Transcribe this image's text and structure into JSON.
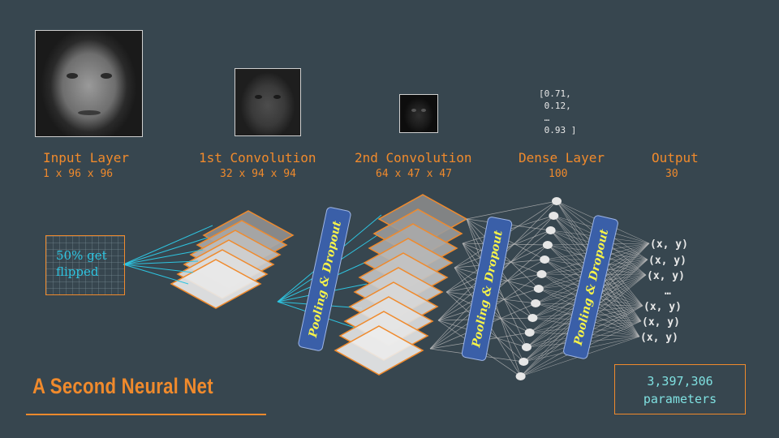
{
  "layers": [
    {
      "name": "Input Layer",
      "dims": "1 x 96 x 96"
    },
    {
      "name": "1st Convolution",
      "dims": "32 x 94 x 94"
    },
    {
      "name": "2nd Convolution",
      "dims": "64 x 47 x 47"
    },
    {
      "name": "Dense Layer",
      "dims": "100"
    },
    {
      "name": "Output",
      "dims": "30"
    }
  ],
  "dense_vector": [
    "[0.71,",
    " 0.12,",
    " …",
    " 0.93 ]"
  ],
  "augment_note": {
    "line1": "50% get",
    "line2": "flipped"
  },
  "pooling_label": "Pooling & Dropout",
  "outputs": [
    "(x, y)",
    "(x, y)",
    "(x, y)",
    "…",
    "(x, y)",
    "(x, y)",
    "(x, y)"
  ],
  "title": "A Second Neural Net",
  "parameters": {
    "count": "3,397,306",
    "unit": "parameters"
  },
  "colors": {
    "background": "#37464f",
    "accent": "#f08a2c",
    "cyan": "#2ec4e0",
    "pool_box": "#3a5fa8",
    "pool_text": "#f5f24a"
  }
}
